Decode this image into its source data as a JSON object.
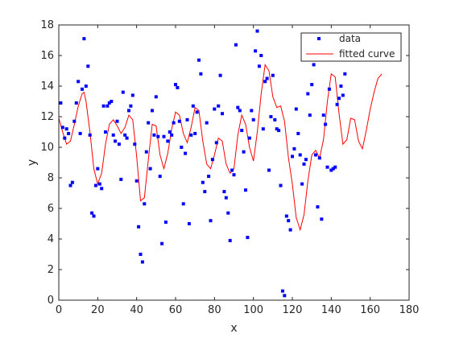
{
  "chart_data": {
    "type": "scatter",
    "xlabel": "x",
    "ylabel": "y",
    "xlim": [
      0,
      180
    ],
    "ylim": [
      0,
      18
    ],
    "x_ticks": [
      "0",
      "20",
      "40",
      "60",
      "80",
      "100",
      "120",
      "140",
      "160",
      "180"
    ],
    "y_ticks": [
      "0",
      "2",
      "4",
      "6",
      "8",
      "10",
      "12",
      "14",
      "16",
      "18"
    ],
    "grid": false,
    "legend_position": "top-right",
    "legend": [
      "data",
      "fitted curve"
    ],
    "colors": {
      "data": "#0000ff",
      "fitted_curve": "#ff0000",
      "axes": "#262626"
    },
    "series": [
      {
        "name": "data",
        "marker": "point",
        "points": [
          [
            1,
            12.9
          ],
          [
            2,
            11.3
          ],
          [
            3,
            10.6
          ],
          [
            4,
            11.2
          ],
          [
            5,
            10.9
          ],
          [
            6,
            7.5
          ],
          [
            7,
            7.7
          ],
          [
            8,
            11.7
          ],
          [
            9,
            12.9
          ],
          [
            10,
            14.3
          ],
          [
            11,
            10.9
          ],
          [
            12,
            13.8
          ],
          [
            13,
            17.1
          ],
          [
            14,
            14.0
          ],
          [
            15,
            15.3
          ],
          [
            16,
            10.8
          ],
          [
            17,
            5.7
          ],
          [
            18,
            5.5
          ],
          [
            19,
            7.5
          ],
          [
            20,
            8.6
          ],
          [
            21,
            7.6
          ],
          [
            22,
            7.3
          ],
          [
            23,
            12.7
          ],
          [
            24,
            11.0
          ],
          [
            25,
            12.7
          ],
          [
            26,
            12.9
          ],
          [
            27,
            13.0
          ],
          [
            28,
            10.8
          ],
          [
            29,
            10.4
          ],
          [
            30,
            11.7
          ],
          [
            31,
            10.2
          ],
          [
            32,
            7.9
          ],
          [
            33,
            13.6
          ],
          [
            34,
            10.8
          ],
          [
            35,
            10.6
          ],
          [
            36,
            12.4
          ],
          [
            37,
            12.7
          ],
          [
            38,
            13.4
          ],
          [
            39,
            10.2
          ],
          [
            40,
            7.8
          ],
          [
            41,
            4.8
          ],
          [
            42,
            3.0
          ],
          [
            43,
            2.5
          ],
          [
            44,
            6.3
          ],
          [
            45,
            9.7
          ],
          [
            46,
            11.6
          ],
          [
            47,
            8.6
          ],
          [
            48,
            12.4
          ],
          [
            49,
            10.8
          ],
          [
            50,
            13.3
          ],
          [
            51,
            10.7
          ],
          [
            52,
            8.1
          ],
          [
            53,
            3.7
          ],
          [
            54,
            10.7
          ],
          [
            55,
            5.1
          ],
          [
            56,
            10.4
          ],
          [
            57,
            11.0
          ],
          [
            58,
            10.8
          ],
          [
            59,
            11.6
          ],
          [
            60,
            14.1
          ],
          [
            61,
            13.9
          ],
          [
            62,
            11.7
          ],
          [
            63,
            10.0
          ],
          [
            64,
            6.3
          ],
          [
            65,
            9.6
          ],
          [
            66,
            11.8
          ],
          [
            67,
            5.0
          ],
          [
            68,
            10.8
          ],
          [
            69,
            12.7
          ],
          [
            70,
            10.9
          ],
          [
            71,
            12.3
          ],
          [
            72,
            15.7
          ],
          [
            73,
            14.8
          ],
          [
            74,
            7.7
          ],
          [
            75,
            7.1
          ],
          [
            76,
            11.6
          ],
          [
            77,
            8.1
          ],
          [
            78,
            5.2
          ],
          [
            79,
            9.2
          ],
          [
            80,
            12.5
          ],
          [
            81,
            10.3
          ],
          [
            82,
            12.7
          ],
          [
            83,
            14.7
          ],
          [
            84,
            12.2
          ],
          [
            85,
            7.1
          ],
          [
            86,
            6.7
          ],
          [
            87,
            5.7
          ],
          [
            88,
            3.9
          ],
          [
            89,
            8.5
          ],
          [
            90,
            8.2
          ],
          [
            91,
            16.7
          ],
          [
            92,
            12.6
          ],
          [
            93,
            12.4
          ],
          [
            94,
            11.1
          ],
          [
            95,
            9.7
          ],
          [
            96,
            7.2
          ],
          [
            97,
            4.1
          ],
          [
            98,
            10.6
          ],
          [
            99,
            12.4
          ],
          [
            100,
            11.8
          ],
          [
            101,
            16.3
          ],
          [
            102,
            17.6
          ],
          [
            103,
            15.3
          ],
          [
            104,
            16.0
          ],
          [
            105,
            11.2
          ],
          [
            106,
            14.3
          ],
          [
            107,
            14.5
          ],
          [
            108,
            8.5
          ],
          [
            109,
            12.0
          ],
          [
            110,
            14.7
          ],
          [
            111,
            11.8
          ],
          [
            112,
            11.2
          ],
          [
            113,
            11.1
          ],
          [
            114,
            7.5
          ],
          [
            115,
            0.6
          ],
          [
            116,
            0.3
          ],
          [
            117,
            5.5
          ],
          [
            118,
            5.2
          ],
          [
            119,
            4.6
          ],
          [
            120,
            9.4
          ],
          [
            121,
            9.9
          ],
          [
            122,
            12.5
          ],
          [
            123,
            10.9
          ],
          [
            124,
            9.5
          ],
          [
            125,
            7.6
          ],
          [
            126,
            8.9
          ],
          [
            127,
            9.2
          ],
          [
            128,
            13.5
          ],
          [
            129,
            12.1
          ],
          [
            130,
            14.1
          ],
          [
            131,
            15.4
          ],
          [
            132,
            9.5
          ],
          [
            133,
            6.1
          ],
          [
            134,
            9.3
          ],
          [
            135,
            5.3
          ],
          [
            136,
            12.1
          ],
          [
            137,
            11.5
          ],
          [
            138,
            8.7
          ],
          [
            139,
            13.8
          ],
          [
            140,
            8.5
          ],
          [
            141,
            8.6
          ],
          [
            142,
            8.7
          ],
          [
            143,
            12.8
          ],
          [
            144,
            13.2
          ],
          [
            145,
            14.0
          ],
          [
            146,
            13.4
          ],
          [
            147,
            14.8
          ]
        ]
      },
      {
        "name": "fitted curve",
        "marker": "none",
        "points": [
          [
            0,
            11.9
          ],
          [
            2,
            11.0
          ],
          [
            4,
            10.2
          ],
          [
            6,
            10.4
          ],
          [
            8,
            11.5
          ],
          [
            10,
            12.7
          ],
          [
            12,
            13.5
          ],
          [
            13,
            13.6
          ],
          [
            14,
            13.0
          ],
          [
            16,
            11.0
          ],
          [
            18,
            8.6
          ],
          [
            20,
            7.6
          ],
          [
            22,
            8.3
          ],
          [
            24,
            10.2
          ],
          [
            26,
            11.5
          ],
          [
            28,
            11.8
          ],
          [
            30,
            11.4
          ],
          [
            32,
            10.9
          ],
          [
            34,
            11.3
          ],
          [
            36,
            12.1
          ],
          [
            38,
            11.8
          ],
          [
            40,
            9.4
          ],
          [
            42,
            6.5
          ],
          [
            44,
            6.7
          ],
          [
            46,
            9.2
          ],
          [
            48,
            11.5
          ],
          [
            50,
            11.4
          ],
          [
            52,
            9.5
          ],
          [
            54,
            8.6
          ],
          [
            56,
            9.6
          ],
          [
            58,
            11.2
          ],
          [
            60,
            12.3
          ],
          [
            62,
            12.1
          ],
          [
            64,
            10.9
          ],
          [
            66,
            10.3
          ],
          [
            68,
            11.3
          ],
          [
            70,
            12.6
          ],
          [
            72,
            12.4
          ],
          [
            74,
            10.4
          ],
          [
            76,
            8.9
          ],
          [
            78,
            8.6
          ],
          [
            80,
            9.5
          ],
          [
            82,
            10.6
          ],
          [
            84,
            10.4
          ],
          [
            86,
            8.9
          ],
          [
            88,
            8.3
          ],
          [
            90,
            8.6
          ],
          [
            92,
            10.8
          ],
          [
            94,
            12.1
          ],
          [
            96,
            11.5
          ],
          [
            98,
            10.0
          ],
          [
            100,
            9.1
          ],
          [
            102,
            11.0
          ],
          [
            104,
            13.5
          ],
          [
            106,
            15.4
          ],
          [
            108,
            15.0
          ],
          [
            110,
            13.3
          ],
          [
            112,
            12.6
          ],
          [
            114,
            12.7
          ],
          [
            116,
            11.7
          ],
          [
            118,
            9.3
          ],
          [
            120,
            7.6
          ],
          [
            122,
            5.4
          ],
          [
            124,
            4.6
          ],
          [
            126,
            5.6
          ],
          [
            128,
            7.8
          ],
          [
            130,
            9.5
          ],
          [
            132,
            9.8
          ],
          [
            134,
            9.3
          ],
          [
            136,
            10.5
          ],
          [
            138,
            13.0
          ],
          [
            140,
            14.8
          ],
          [
            142,
            14.6
          ],
          [
            144,
            12.2
          ],
          [
            146,
            10.2
          ],
          [
            148,
            10.5
          ],
          [
            150,
            11.9
          ],
          [
            152,
            11.8
          ],
          [
            154,
            10.4
          ],
          [
            156,
            9.9
          ],
          [
            158,
            11.1
          ],
          [
            160,
            12.5
          ],
          [
            162,
            13.6
          ],
          [
            164,
            14.5
          ],
          [
            166,
            14.8
          ]
        ]
      }
    ]
  }
}
